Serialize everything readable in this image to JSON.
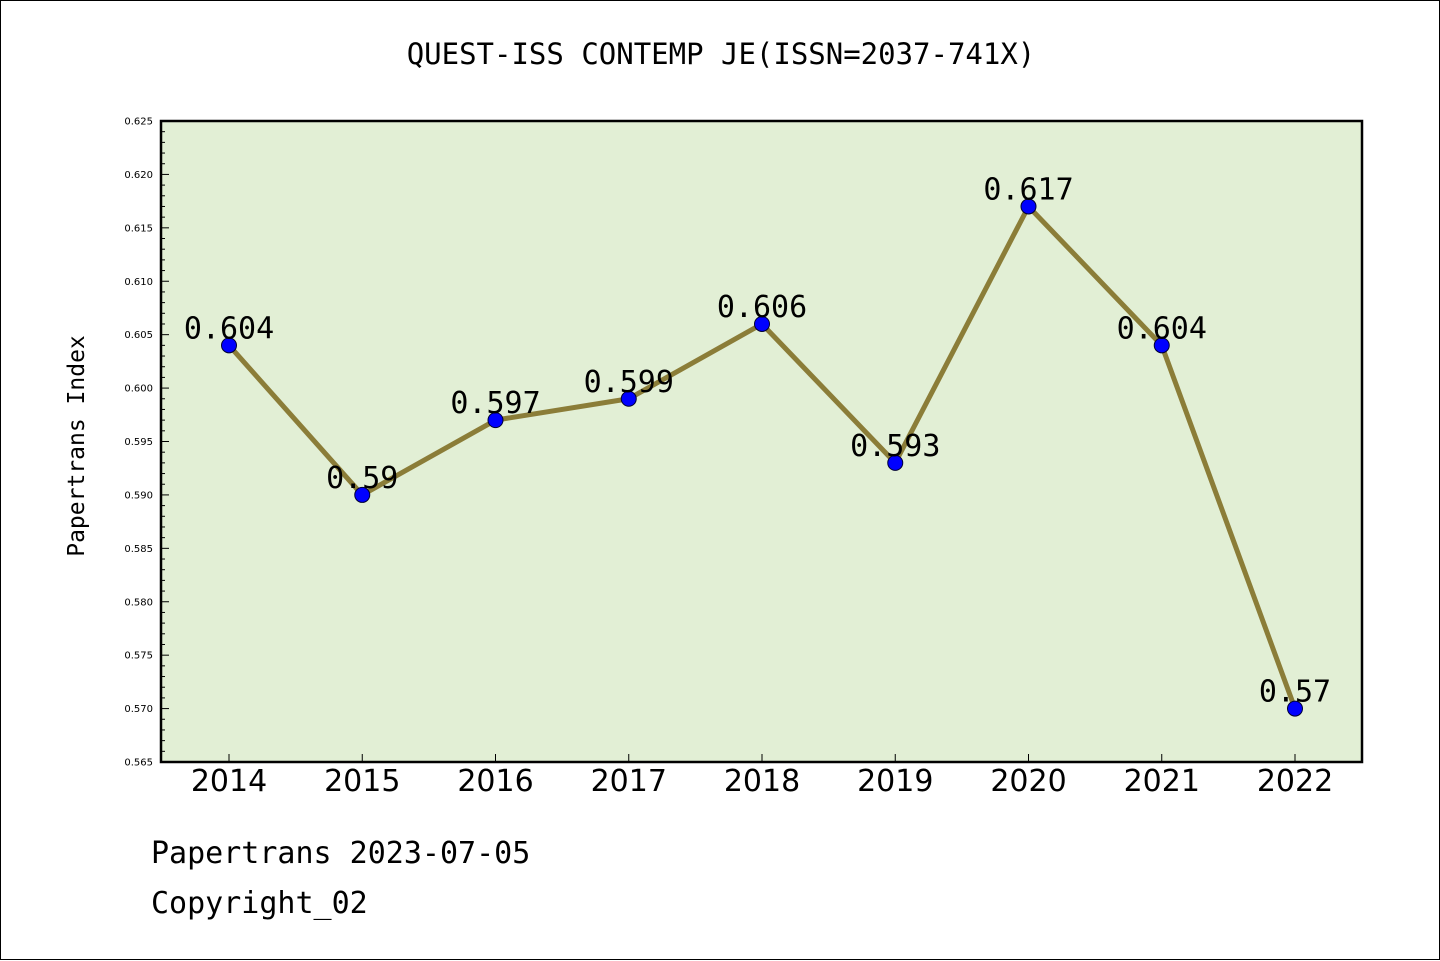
{
  "chart_data": {
    "type": "line",
    "title": "QUEST-ISS CONTEMP JE(ISSN=2037-741X)",
    "xlabel": "",
    "ylabel": "Papertrans Index",
    "categories": [
      "2014",
      "2015",
      "2016",
      "2017",
      "2018",
      "2019",
      "2020",
      "2021",
      "2022"
    ],
    "series": [
      {
        "values": [
          0.604,
          0.59,
          0.597,
          0.599,
          0.606,
          0.593,
          0.617,
          0.604,
          0.57
        ],
        "data_labels": [
          "0.604",
          "0.59",
          "0.597",
          "0.599",
          "0.606",
          "0.593",
          "0.617",
          "0.604",
          "0.57"
        ]
      }
    ],
    "ylim": [
      0.565,
      0.625
    ],
    "y_ticks": [
      "0.565",
      "0.570",
      "0.575",
      "0.580",
      "0.585",
      "0.590",
      "0.595",
      "0.600",
      "0.605",
      "0.610",
      "0.615",
      "0.620",
      "0.625"
    ],
    "grid": false,
    "colors": {
      "plot_background": "#e2efd5",
      "line": "#8b7d38",
      "marker": "#0000ff",
      "axis": "#000000"
    }
  },
  "footer": {
    "date_line": "Papertrans 2023-07-05",
    "copyright_line": "Copyright_02"
  }
}
